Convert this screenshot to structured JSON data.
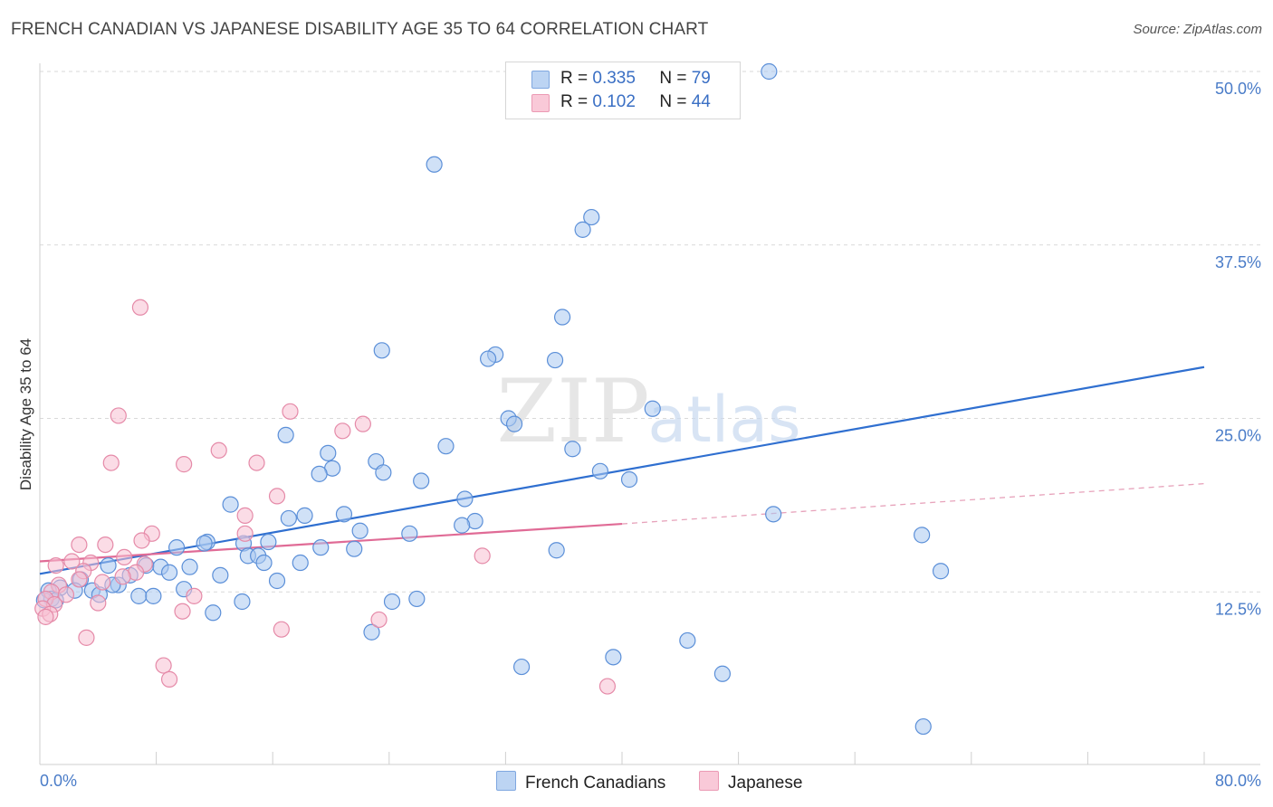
{
  "title": "FRENCH CANADIAN VS JAPANESE DISABILITY AGE 35 TO 64 CORRELATION CHART",
  "source": "Source: ZipAtlas.com",
  "watermark": {
    "zip": "ZIP",
    "atlas": "atlas"
  },
  "legend": [
    {
      "r_label": "R =",
      "r_value": "0.335",
      "n_label": "N =",
      "n_value": "79"
    },
    {
      "r_label": "R =",
      "r_value": "0.102",
      "n_label": "N =",
      "n_value": "44"
    }
  ],
  "chart_data": {
    "type": "scatter",
    "ylabel": "Disability Age 35 to 64",
    "xlim": [
      0,
      80
    ],
    "ylim": [
      0,
      50
    ],
    "x_tick_labels": [
      "0.0%",
      "80.0%"
    ],
    "y_ticks": [
      {
        "value": 12.5,
        "label": "12.5%"
      },
      {
        "value": 25.0,
        "label": "25.0%"
      },
      {
        "value": 37.5,
        "label": "37.5%"
      },
      {
        "value": 50.0,
        "label": "50.0%"
      }
    ],
    "grid": "horizontal dashed",
    "legend_placement": "top-center",
    "series": [
      {
        "name": "French Canadians",
        "color": "#5b8fd8",
        "fill": "#aac8f0",
        "trend": {
          "x": [
            0,
            80
          ],
          "y": [
            13.8,
            28.7
          ],
          "style": "solid"
        },
        "points": [
          [
            50.1,
            50.0
          ],
          [
            27.1,
            43.3
          ],
          [
            37.9,
            39.5
          ],
          [
            37.3,
            38.6
          ],
          [
            35.9,
            32.3
          ],
          [
            23.5,
            29.9
          ],
          [
            31.3,
            29.6
          ],
          [
            30.8,
            29.3
          ],
          [
            35.4,
            29.2
          ],
          [
            42.1,
            25.7
          ],
          [
            32.2,
            25.0
          ],
          [
            32.6,
            24.6
          ],
          [
            16.9,
            23.8
          ],
          [
            27.9,
            23.0
          ],
          [
            36.6,
            22.8
          ],
          [
            19.8,
            22.5
          ],
          [
            20.1,
            21.4
          ],
          [
            23.1,
            21.9
          ],
          [
            23.6,
            21.1
          ],
          [
            19.2,
            21.0
          ],
          [
            38.5,
            21.2
          ],
          [
            26.2,
            20.5
          ],
          [
            40.5,
            20.6
          ],
          [
            29.2,
            19.2
          ],
          [
            13.1,
            18.8
          ],
          [
            50.4,
            18.1
          ],
          [
            17.1,
            17.8
          ],
          [
            18.2,
            18.0
          ],
          [
            20.9,
            18.1
          ],
          [
            29.9,
            17.6
          ],
          [
            29.0,
            17.3
          ],
          [
            22.0,
            16.9
          ],
          [
            25.4,
            16.7
          ],
          [
            60.6,
            16.6
          ],
          [
            11.5,
            16.1
          ],
          [
            15.7,
            16.1
          ],
          [
            11.3,
            16.0
          ],
          [
            14.0,
            16.0
          ],
          [
            9.4,
            15.7
          ],
          [
            21.6,
            15.6
          ],
          [
            19.3,
            15.7
          ],
          [
            35.5,
            15.5
          ],
          [
            14.3,
            15.1
          ],
          [
            15.0,
            15.1
          ],
          [
            15.4,
            14.6
          ],
          [
            17.9,
            14.6
          ],
          [
            4.7,
            14.4
          ],
          [
            7.3,
            14.4
          ],
          [
            8.3,
            14.3
          ],
          [
            10.3,
            14.3
          ],
          [
            61.9,
            14.0
          ],
          [
            8.9,
            13.9
          ],
          [
            12.4,
            13.7
          ],
          [
            6.2,
            13.7
          ],
          [
            2.8,
            13.4
          ],
          [
            16.3,
            13.3
          ],
          [
            5.4,
            13.0
          ],
          [
            5.0,
            13.0
          ],
          [
            1.4,
            12.8
          ],
          [
            2.4,
            12.6
          ],
          [
            3.6,
            12.6
          ],
          [
            4.1,
            12.3
          ],
          [
            0.6,
            12.6
          ],
          [
            9.9,
            12.7
          ],
          [
            6.8,
            12.2
          ],
          [
            7.8,
            12.2
          ],
          [
            0.8,
            12.0
          ],
          [
            1.1,
            11.9
          ],
          [
            0.3,
            11.9
          ],
          [
            25.9,
            12.0
          ],
          [
            13.9,
            11.8
          ],
          [
            24.2,
            11.8
          ],
          [
            11.9,
            11.0
          ],
          [
            22.8,
            9.6
          ],
          [
            44.5,
            9.0
          ],
          [
            39.4,
            7.8
          ],
          [
            33.1,
            7.1
          ],
          [
            46.9,
            6.6
          ],
          [
            60.7,
            2.8
          ]
        ]
      },
      {
        "name": "Japanese",
        "color": "#e58aa8",
        "fill": "#f7bfd1",
        "trend": {
          "x": [
            0,
            40
          ],
          "y": [
            14.7,
            17.4
          ],
          "style": "solid",
          "extension": {
            "x": [
              40,
              80
            ],
            "y": [
              17.4,
              20.3
            ],
            "style": "dashed"
          }
        },
        "points": [
          [
            6.9,
            33.0
          ],
          [
            17.2,
            25.5
          ],
          [
            5.4,
            25.2
          ],
          [
            22.2,
            24.6
          ],
          [
            20.8,
            24.1
          ],
          [
            12.3,
            22.7
          ],
          [
            4.9,
            21.8
          ],
          [
            14.9,
            21.8
          ],
          [
            9.9,
            21.7
          ],
          [
            16.3,
            19.4
          ],
          [
            14.1,
            18.0
          ],
          [
            7.7,
            16.7
          ],
          [
            14.1,
            16.7
          ],
          [
            7.0,
            16.2
          ],
          [
            4.5,
            15.9
          ],
          [
            2.7,
            15.9
          ],
          [
            5.8,
            15.0
          ],
          [
            30.4,
            15.1
          ],
          [
            7.2,
            14.5
          ],
          [
            2.2,
            14.7
          ],
          [
            3.5,
            14.6
          ],
          [
            1.1,
            14.4
          ],
          [
            3.0,
            14.0
          ],
          [
            6.6,
            13.9
          ],
          [
            5.7,
            13.6
          ],
          [
            2.7,
            13.4
          ],
          [
            4.3,
            13.2
          ],
          [
            1.3,
            13.0
          ],
          [
            0.8,
            12.5
          ],
          [
            1.8,
            12.3
          ],
          [
            0.4,
            12.0
          ],
          [
            10.6,
            12.2
          ],
          [
            1.0,
            11.6
          ],
          [
            4.0,
            11.7
          ],
          [
            0.2,
            11.3
          ],
          [
            0.7,
            10.9
          ],
          [
            0.4,
            10.7
          ],
          [
            9.8,
            11.1
          ],
          [
            23.3,
            10.5
          ],
          [
            16.6,
            9.8
          ],
          [
            3.2,
            9.2
          ],
          [
            8.5,
            7.2
          ],
          [
            8.9,
            6.2
          ],
          [
            39.0,
            5.7
          ]
        ]
      }
    ]
  }
}
